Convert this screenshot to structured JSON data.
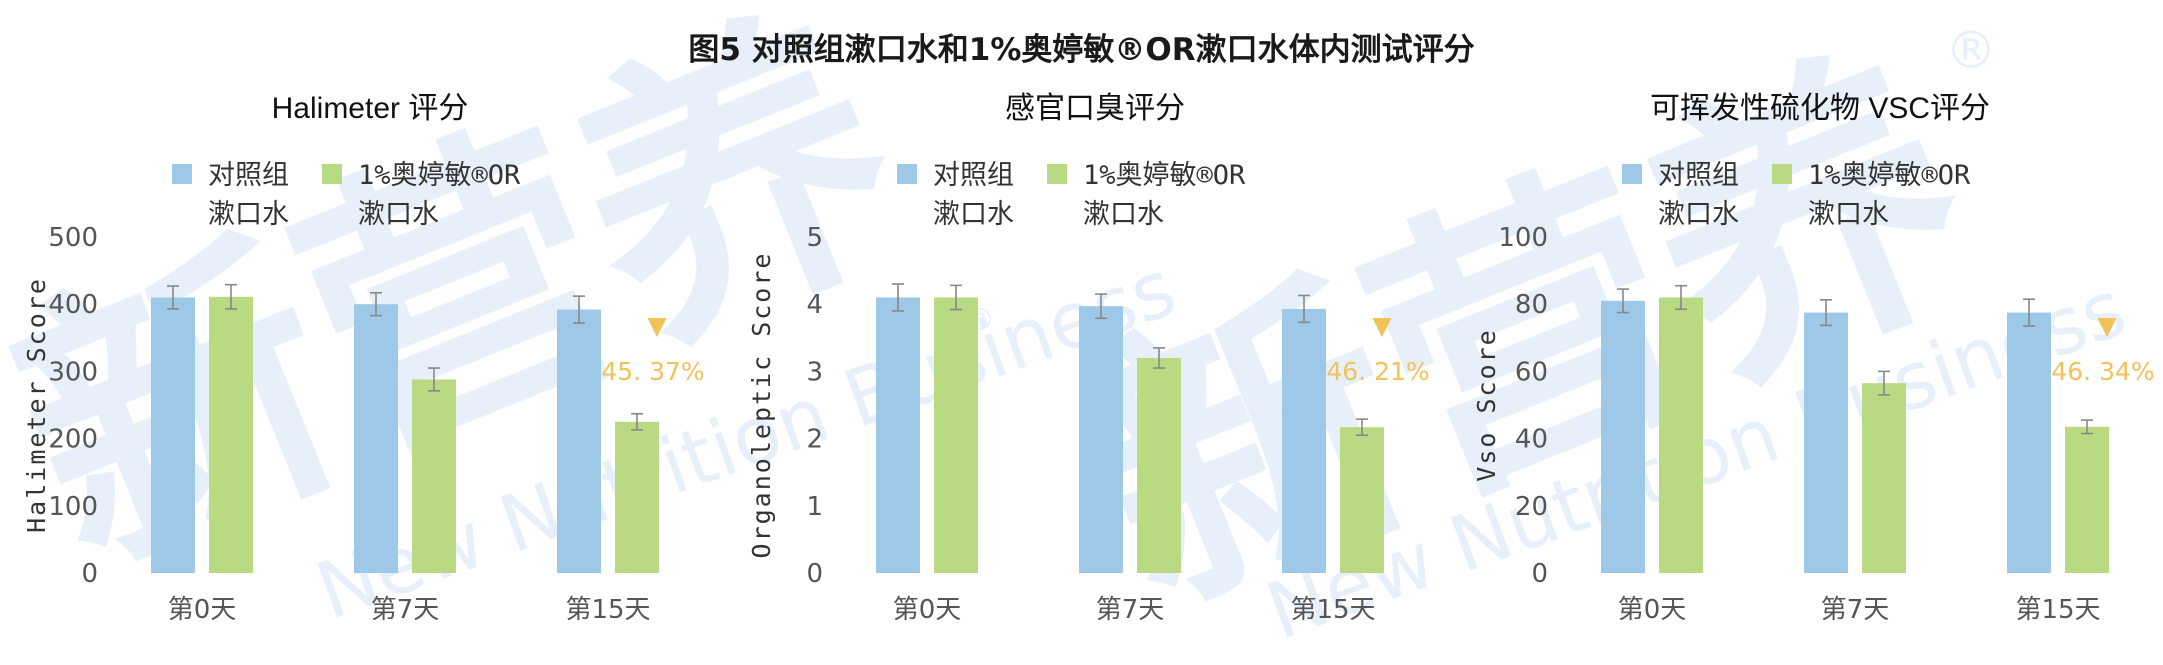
{
  "figure_title": "图5 对照组漱口水和1%奥婷敏®OR漱口水体内测试评分",
  "watermark": {
    "brand": "新营养",
    "sub": "New Nutrition Business",
    "mark": "®"
  },
  "colors": {
    "control": "#9dc8e8",
    "treatment": "#b9d982",
    "annotation": "#f2c25a",
    "error": "#888888"
  },
  "legend": {
    "control": [
      "对照组",
      "漱口水"
    ],
    "treatment": [
      "1%奥婷敏®OR",
      "漱口水"
    ]
  },
  "chart_data": [
    {
      "type": "bar",
      "title": "Halimeter 评分",
      "ylabel": "Halimeter Score",
      "ylim": [
        0,
        500
      ],
      "yticks": [
        "0",
        "100",
        "200",
        "300",
        "400",
        "500"
      ],
      "categories": [
        "第0天",
        "第7天",
        "第15天"
      ],
      "series": [
        {
          "name": "对照组漱口水",
          "values": [
            410,
            400,
            392
          ],
          "errors": [
            17,
            17,
            20
          ]
        },
        {
          "name": "1%奥婷敏®OR漱口水",
          "values": [
            411,
            288,
            225
          ],
          "errors": [
            18,
            17,
            12
          ]
        }
      ],
      "annotation": {
        "marker": "▼",
        "text": "45. 37%"
      }
    },
    {
      "type": "bar",
      "title": "感官口臭评分",
      "ylabel": "Organoleptic Score",
      "ylim": [
        0,
        5
      ],
      "yticks": [
        "0",
        "1",
        "2",
        "3",
        "4",
        "5"
      ],
      "categories": [
        "第0天",
        "第7天",
        "第15天"
      ],
      "series": [
        {
          "name": "对照组漱口水",
          "values": [
            4.1,
            3.97,
            3.93
          ],
          "errors": [
            0.2,
            0.18,
            0.2
          ]
        },
        {
          "name": "1%奥婷敏®OR漱口水",
          "values": [
            4.1,
            3.2,
            2.17
          ],
          "errors": [
            0.18,
            0.15,
            0.12
          ]
        }
      ],
      "annotation": {
        "marker": "▼",
        "text": "46. 21%"
      }
    },
    {
      "type": "bar",
      "title": "可挥发性硫化物 VSC评分",
      "ylabel": "Vso Score",
      "ylim": [
        0,
        100
      ],
      "yticks": [
        "0",
        "20",
        "40",
        "60",
        "80",
        "100"
      ],
      "categories": [
        "第0天",
        "第7天",
        "第15天"
      ],
      "series": [
        {
          "name": "对照组漱口水",
          "values": [
            81,
            77.5,
            77.5
          ],
          "errors": [
            3.5,
            3.8,
            4
          ]
        },
        {
          "name": "1%奥婷敏®OR漱口水",
          "values": [
            82,
            56.5,
            43.5
          ],
          "errors": [
            3.5,
            3.5,
            2
          ]
        }
      ],
      "annotation": {
        "marker": "▼",
        "text": "46. 34%"
      }
    }
  ]
}
